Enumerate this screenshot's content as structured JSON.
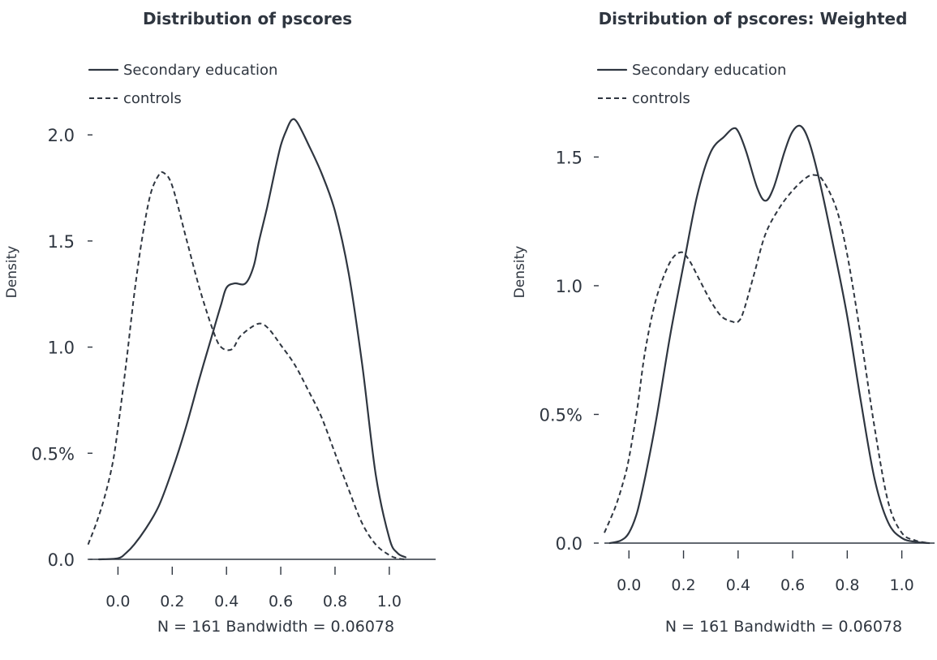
{
  "chart_data": [
    {
      "type": "line",
      "title": "Distribution of pscores",
      "xlabel": "N = 161 Bandwidth = 0.06078",
      "ylabel": "Density",
      "xlim": [
        -0.07,
        1.12
      ],
      "ylim": [
        0.0,
        2.1
      ],
      "x_ticks": [
        0.0,
        0.2,
        0.4,
        0.6,
        0.8,
        1.0
      ],
      "x_tick_labels": [
        "0.0",
        "0.2",
        "0.4",
        "0.6",
        "0.8",
        "1.0"
      ],
      "y_ticks": [
        0.0,
        0.5,
        1.0,
        1.5,
        2.0
      ],
      "y_tick_labels": [
        "0.0",
        "0.5%",
        "1.0",
        "1.5",
        "2.0"
      ],
      "legend": [
        "Secondary education",
        "controls"
      ],
      "legend_position": "top-left",
      "grid": false,
      "series": [
        {
          "name": "Secondary education",
          "style": "solid",
          "x": [
            -0.07,
            0.0,
            0.03,
            0.06,
            0.1,
            0.15,
            0.2,
            0.25,
            0.3,
            0.35,
            0.38,
            0.4,
            0.43,
            0.47,
            0.5,
            0.52,
            0.55,
            0.58,
            0.6,
            0.62,
            0.64,
            0.66,
            0.7,
            0.75,
            0.8,
            0.85,
            0.9,
            0.95,
            1.0,
            1.03,
            1.06
          ],
          "y": [
            0.0,
            0.005,
            0.03,
            0.07,
            0.14,
            0.25,
            0.42,
            0.62,
            0.85,
            1.07,
            1.2,
            1.28,
            1.3,
            1.3,
            1.38,
            1.5,
            1.66,
            1.84,
            1.95,
            2.02,
            2.07,
            2.06,
            1.96,
            1.82,
            1.64,
            1.35,
            0.92,
            0.4,
            0.1,
            0.03,
            0.01
          ]
        },
        {
          "name": "controls",
          "style": "dashed",
          "x": [
            -0.11,
            -0.08,
            -0.05,
            -0.02,
            0.0,
            0.03,
            0.06,
            0.09,
            0.12,
            0.15,
            0.17,
            0.2,
            0.25,
            0.3,
            0.35,
            0.38,
            0.42,
            0.45,
            0.5,
            0.53,
            0.56,
            0.6,
            0.65,
            0.7,
            0.75,
            0.8,
            0.85,
            0.9,
            0.95,
            1.0,
            1.03,
            1.06
          ],
          "y": [
            0.07,
            0.17,
            0.29,
            0.45,
            0.62,
            0.92,
            1.25,
            1.52,
            1.72,
            1.81,
            1.82,
            1.76,
            1.52,
            1.28,
            1.08,
            1.0,
            0.99,
            1.05,
            1.1,
            1.11,
            1.08,
            1.01,
            0.92,
            0.8,
            0.67,
            0.5,
            0.33,
            0.17,
            0.07,
            0.02,
            0.005,
            0.0
          ]
        }
      ]
    },
    {
      "type": "line",
      "title": "Distribution of pscores: Weighted",
      "xlabel": "N = 161 Bandwidth = 0.06078",
      "ylabel": "Density",
      "xlim": [
        -0.09,
        1.12
      ],
      "ylim": [
        0.0,
        1.7
      ],
      "x_ticks": [
        0.0,
        0.2,
        0.4,
        0.6,
        0.8,
        1.0
      ],
      "x_tick_labels": [
        "0.0",
        "0.2",
        "0.4",
        "0.6",
        "0.8",
        "1.0"
      ],
      "y_ticks": [
        0.0,
        0.5,
        1.0,
        1.5
      ],
      "y_tick_labels": [
        "0.0",
        "0.5%",
        "1.0",
        "1.5"
      ],
      "legend": [
        "Secondary education",
        "controls"
      ],
      "legend_position": "top-left",
      "grid": false,
      "series": [
        {
          "name": "Secondary education",
          "style": "solid",
          "x": [
            -0.07,
            -0.03,
            0.0,
            0.03,
            0.06,
            0.1,
            0.15,
            0.2,
            0.25,
            0.3,
            0.35,
            0.38,
            0.4,
            0.43,
            0.47,
            0.5,
            0.53,
            0.57,
            0.6,
            0.63,
            0.66,
            0.7,
            0.75,
            0.8,
            0.85,
            0.9,
            0.95,
            1.0,
            1.05,
            1.1
          ],
          "y": [
            0.0,
            0.01,
            0.04,
            0.12,
            0.26,
            0.48,
            0.8,
            1.08,
            1.35,
            1.52,
            1.58,
            1.61,
            1.6,
            1.52,
            1.38,
            1.33,
            1.38,
            1.52,
            1.6,
            1.62,
            1.56,
            1.4,
            1.15,
            0.88,
            0.55,
            0.25,
            0.08,
            0.02,
            0.005,
            0.0
          ]
        },
        {
          "name": "controls",
          "style": "dashed",
          "x": [
            -0.09,
            -0.05,
            -0.02,
            0.0,
            0.03,
            0.06,
            0.1,
            0.15,
            0.19,
            0.22,
            0.26,
            0.3,
            0.34,
            0.38,
            0.4,
            0.42,
            0.46,
            0.5,
            0.55,
            0.6,
            0.65,
            0.68,
            0.71,
            0.76,
            0.8,
            0.85,
            0.9,
            0.95,
            1.0,
            1.05,
            1.1
          ],
          "y": [
            0.04,
            0.14,
            0.24,
            0.33,
            0.52,
            0.75,
            0.95,
            1.09,
            1.13,
            1.1,
            1.02,
            0.94,
            0.88,
            0.86,
            0.86,
            0.9,
            1.05,
            1.2,
            1.3,
            1.37,
            1.42,
            1.43,
            1.41,
            1.3,
            1.12,
            0.8,
            0.45,
            0.16,
            0.04,
            0.01,
            0.0
          ]
        }
      ]
    }
  ]
}
